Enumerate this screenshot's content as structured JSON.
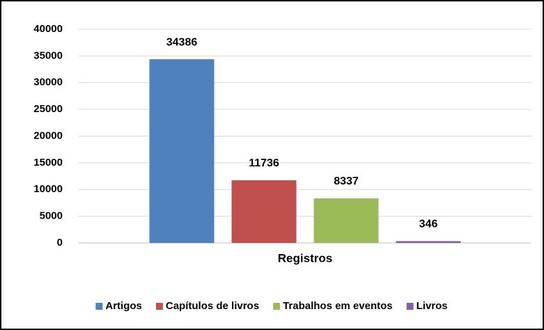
{
  "chart_data": {
    "type": "bar",
    "categories": [
      "Registros"
    ],
    "series": [
      {
        "name": "Artigos",
        "color": "#4f81bd",
        "values": [
          34386
        ]
      },
      {
        "name": "Capítulos de livros",
        "color": "#c0504d",
        "values": [
          11736
        ]
      },
      {
        "name": "Trabalhos em eventos",
        "color": "#9bbb59",
        "values": [
          8337
        ]
      },
      {
        "name": "Livros",
        "color": "#8064a2",
        "values": [
          346
        ]
      }
    ],
    "ylim": [
      0,
      40000
    ],
    "yticks": [
      0,
      5000,
      10000,
      15000,
      20000,
      25000,
      30000,
      35000,
      40000
    ],
    "grid": true,
    "legend": "bottom"
  }
}
